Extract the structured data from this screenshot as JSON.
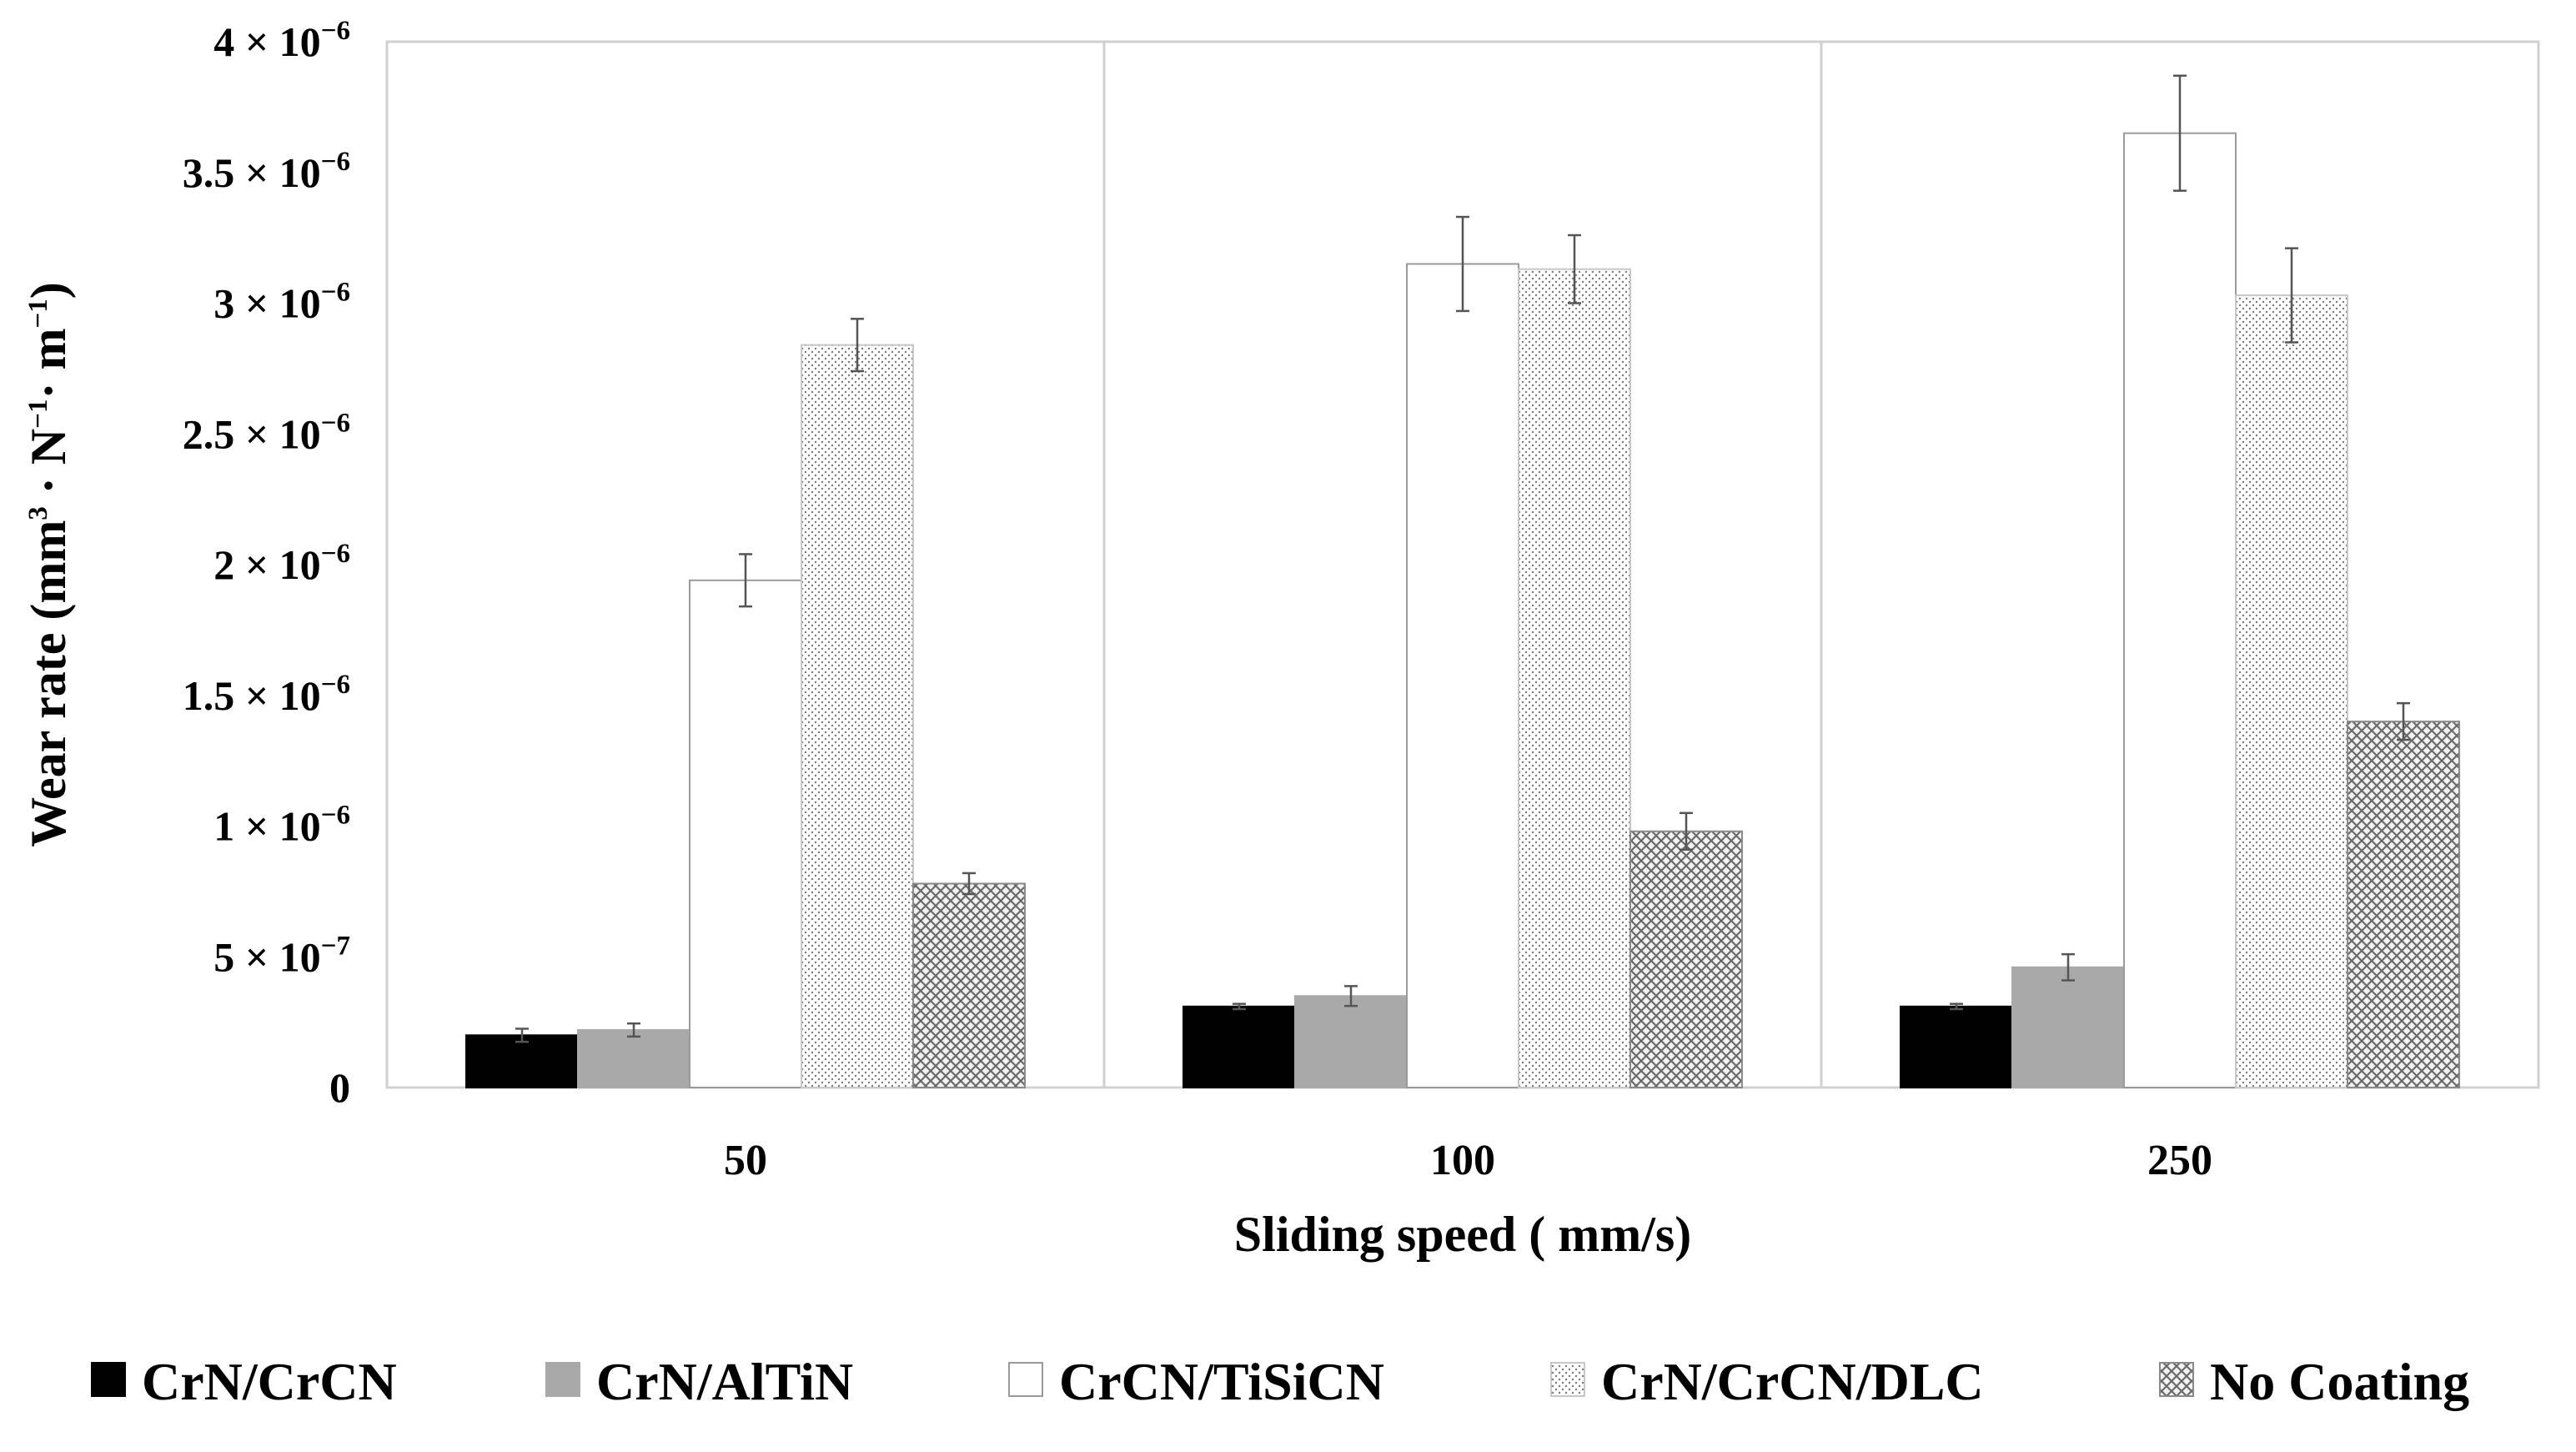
{
  "chart_data": {
    "type": "bar",
    "title": "",
    "xlabel": "Sliding speed ( mm/s)",
    "ylabel": {
      "main": "Wear rate (mm",
      "sup1": "3",
      "mid1": " · N",
      "sup2": "−1",
      "mid2": "· m",
      "sup3": "−1",
      "end": ")"
    },
    "categories": [
      "50",
      "100",
      "250"
    ],
    "ylim": [
      0,
      4e-06
    ],
    "yticks": [
      {
        "value": 0,
        "mantissa": "0",
        "exponent": ""
      },
      {
        "value": 5e-07,
        "mantissa": "5 × 10",
        "exponent": "−7"
      },
      {
        "value": 1e-06,
        "mantissa": "1 × 10",
        "exponent": "−6"
      },
      {
        "value": 1.5e-06,
        "mantissa": "1.5 × 10",
        "exponent": "−6"
      },
      {
        "value": 2e-06,
        "mantissa": "2 × 10",
        "exponent": "−6"
      },
      {
        "value": 2.5e-06,
        "mantissa": "2.5 × 10",
        "exponent": "−6"
      },
      {
        "value": 3e-06,
        "mantissa": "3 × 10",
        "exponent": "−6"
      },
      {
        "value": 3.5e-06,
        "mantissa": "3.5 × 10",
        "exponent": "−6"
      },
      {
        "value": 4e-06,
        "mantissa": "4 × 10",
        "exponent": "−6"
      }
    ],
    "grid": "vertical separators between categories",
    "legend_position": "bottom",
    "series": [
      {
        "name": "CrN/CrCN",
        "fill": "solid-black",
        "values": [
          2e-07,
          3.1e-07,
          3.1e-07
        ],
        "errors": [
          2.5e-08,
          1e-08,
          1e-08
        ]
      },
      {
        "name": "CrN/AlTiN",
        "fill": "solid-gray",
        "values": [
          2.2e-07,
          3.5e-07,
          4.6e-07
        ],
        "errors": [
          2.5e-08,
          3.8e-08,
          5e-08
        ]
      },
      {
        "name": "CrCN/TiSiCN",
        "fill": "white",
        "values": [
          1.94e-06,
          3.15e-06,
          3.65e-06
        ],
        "errors": [
          1e-07,
          1.8e-07,
          2.2e-07
        ]
      },
      {
        "name": "CrN/CrCN/DLC",
        "fill": "dotted",
        "values": [
          2.84e-06,
          3.13e-06,
          3.03e-06
        ],
        "errors": [
          1e-07,
          1.3e-07,
          1.8e-07
        ]
      },
      {
        "name": "No Coating",
        "fill": "crosshatch",
        "values": [
          7.8e-07,
          9.8e-07,
          1.4e-06
        ],
        "errors": [
          4e-08,
          7e-08,
          7e-08
        ]
      }
    ]
  }
}
